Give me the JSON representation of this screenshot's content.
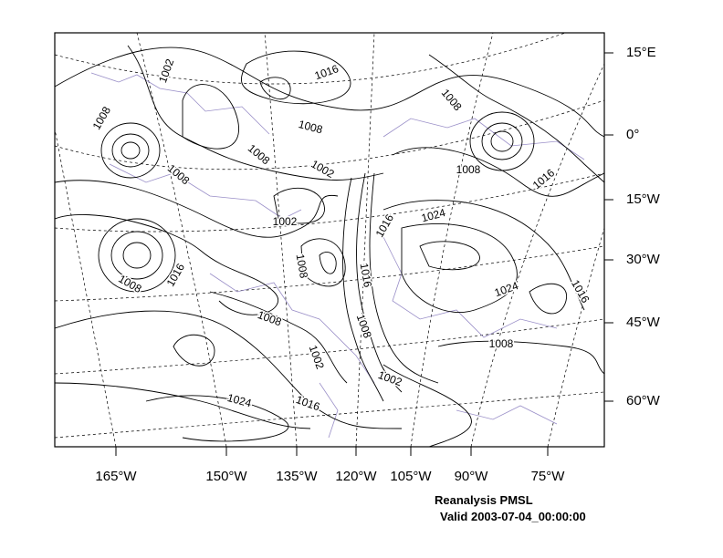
{
  "map": {
    "title": "Reanalysis PMSL",
    "subtitle": "Valid 2003-07-04_00:00:00",
    "lat_labels": [
      "15°E",
      "0°",
      "15°W",
      "30°W",
      "45°W",
      "60°W"
    ],
    "lon_labels": [
      "165°W",
      "150°W",
      "135°W",
      "120°W",
      "105°W",
      "90°W",
      "75°W"
    ],
    "contour_labels": [
      "1002",
      "1016",
      "1008",
      "1008",
      "1008",
      "1008",
      "1008",
      "1002",
      "1008",
      "1016",
      "1002",
      "1016",
      "1024",
      "1008",
      "1016",
      "1008",
      "1016",
      "1024",
      "1016",
      "1008",
      "1008",
      "1008",
      "1002",
      "1002",
      "1024",
      "1016"
    ]
  }
}
